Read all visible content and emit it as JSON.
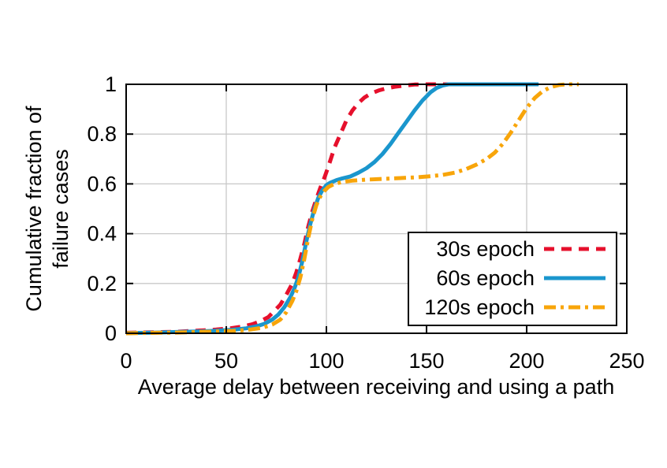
{
  "figure": {
    "background": "#ffffff",
    "text_color": "#000000",
    "grid_color": "#c8c8c8",
    "border_color": "#000000"
  },
  "chart_data": {
    "type": "line",
    "title": "",
    "xlabel": "Average delay between receiving and using a path",
    "ylabel_lines": [
      "Cumulative fraction of",
      "failure cases"
    ],
    "xlim": [
      0,
      250
    ],
    "ylim": [
      0,
      1
    ],
    "grid": true,
    "legend_position": "inside bottom right",
    "x_ticks": [
      0,
      50,
      100,
      150,
      200,
      250
    ],
    "x_tick_labels": [
      "0",
      "50",
      "100",
      "150",
      "200",
      "250"
    ],
    "y_ticks": [
      0,
      0.2,
      0.4,
      0.6,
      0.8,
      1
    ],
    "y_tick_labels": [
      "0",
      "0.2",
      "0.4",
      "0.6",
      "0.8",
      "1"
    ],
    "series": [
      {
        "name": "30s epoch",
        "color": "#e6102c",
        "style": "dashed",
        "points": [
          [
            0,
            0.002
          ],
          [
            15,
            0.004
          ],
          [
            25,
            0.006
          ],
          [
            35,
            0.01
          ],
          [
            45,
            0.015
          ],
          [
            52,
            0.02
          ],
          [
            58,
            0.027
          ],
          [
            63,
            0.036
          ],
          [
            67,
            0.048
          ],
          [
            71,
            0.065
          ],
          [
            74,
            0.09
          ],
          [
            77,
            0.115
          ],
          [
            80,
            0.155
          ],
          [
            83,
            0.2
          ],
          [
            85,
            0.245
          ],
          [
            87,
            0.3
          ],
          [
            89,
            0.36
          ],
          [
            91,
            0.43
          ],
          [
            93,
            0.49
          ],
          [
            95,
            0.54
          ],
          [
            97,
            0.585
          ],
          [
            99,
            0.625
          ],
          [
            101,
            0.67
          ],
          [
            104,
            0.745
          ],
          [
            107,
            0.8
          ],
          [
            110,
            0.855
          ],
          [
            113,
            0.895
          ],
          [
            116,
            0.925
          ],
          [
            119,
            0.947
          ],
          [
            122,
            0.962
          ],
          [
            126,
            0.975
          ],
          [
            130,
            0.984
          ],
          [
            134,
            0.99
          ],
          [
            139,
            0.995
          ],
          [
            144,
            0.999
          ],
          [
            150,
            1
          ],
          [
            164,
            1
          ]
        ]
      },
      {
        "name": "60s epoch",
        "color": "#1a96cd",
        "style": "solid",
        "points": [
          [
            0,
            0.001
          ],
          [
            15,
            0.003
          ],
          [
            25,
            0.005
          ],
          [
            35,
            0.007
          ],
          [
            45,
            0.01
          ],
          [
            53,
            0.014
          ],
          [
            60,
            0.02
          ],
          [
            65,
            0.028
          ],
          [
            69,
            0.038
          ],
          [
            73,
            0.055
          ],
          [
            76,
            0.075
          ],
          [
            79,
            0.105
          ],
          [
            82,
            0.145
          ],
          [
            84,
            0.18
          ],
          [
            86,
            0.225
          ],
          [
            88,
            0.29
          ],
          [
            90,
            0.37
          ],
          [
            92,
            0.44
          ],
          [
            94,
            0.5
          ],
          [
            96,
            0.545
          ],
          [
            98,
            0.575
          ],
          [
            100,
            0.595
          ],
          [
            102,
            0.605
          ],
          [
            105,
            0.615
          ],
          [
            108,
            0.622
          ],
          [
            112,
            0.63
          ],
          [
            116,
            0.645
          ],
          [
            120,
            0.663
          ],
          [
            124,
            0.688
          ],
          [
            128,
            0.72
          ],
          [
            132,
            0.76
          ],
          [
            136,
            0.805
          ],
          [
            140,
            0.85
          ],
          [
            144,
            0.895
          ],
          [
            148,
            0.935
          ],
          [
            152,
            0.968
          ],
          [
            155,
            0.985
          ],
          [
            158,
            0.995
          ],
          [
            161,
            1
          ],
          [
            206,
            1
          ]
        ]
      },
      {
        "name": "120s epoch",
        "color": "#f8a50a",
        "style": "dashdot",
        "points": [
          [
            0,
            0
          ],
          [
            15,
            0.002
          ],
          [
            25,
            0.003
          ],
          [
            35,
            0.005
          ],
          [
            45,
            0.007
          ],
          [
            55,
            0.01
          ],
          [
            62,
            0.015
          ],
          [
            68,
            0.022
          ],
          [
            73,
            0.035
          ],
          [
            77,
            0.055
          ],
          [
            80,
            0.085
          ],
          [
            83,
            0.13
          ],
          [
            85,
            0.17
          ],
          [
            87,
            0.225
          ],
          [
            89,
            0.3
          ],
          [
            91,
            0.385
          ],
          [
            93,
            0.46
          ],
          [
            95,
            0.515
          ],
          [
            97,
            0.55
          ],
          [
            99,
            0.572
          ],
          [
            101,
            0.588
          ],
          [
            104,
            0.6
          ],
          [
            108,
            0.608
          ],
          [
            113,
            0.613
          ],
          [
            120,
            0.617
          ],
          [
            128,
            0.62
          ],
          [
            136,
            0.623
          ],
          [
            144,
            0.626
          ],
          [
            151,
            0.63
          ],
          [
            158,
            0.636
          ],
          [
            164,
            0.645
          ],
          [
            170,
            0.66
          ],
          [
            175,
            0.678
          ],
          [
            180,
            0.7
          ],
          [
            184,
            0.725
          ],
          [
            188,
            0.76
          ],
          [
            192,
            0.805
          ],
          [
            196,
            0.855
          ],
          [
            200,
            0.905
          ],
          [
            204,
            0.945
          ],
          [
            208,
            0.972
          ],
          [
            212,
            0.989
          ],
          [
            216,
            0.997
          ],
          [
            220,
            1
          ],
          [
            226,
            1
          ]
        ]
      }
    ]
  }
}
